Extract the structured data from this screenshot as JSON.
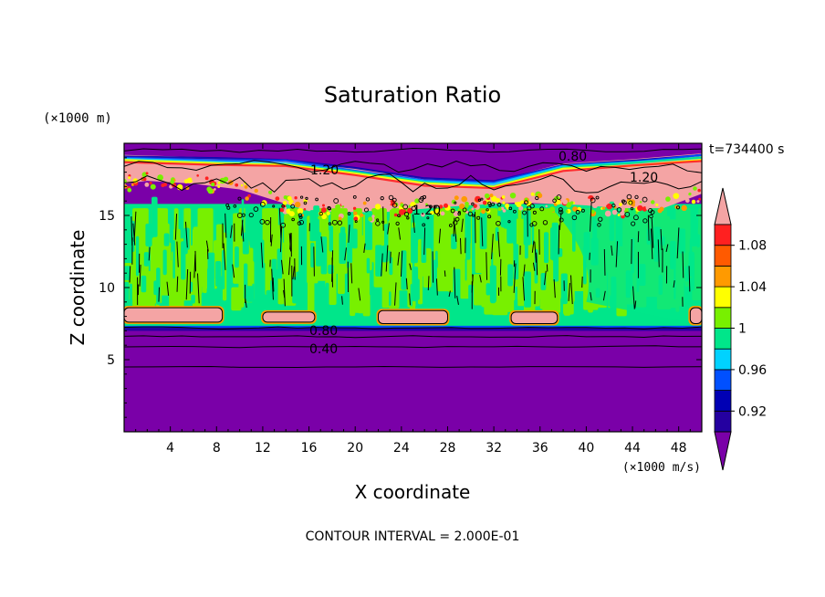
{
  "chart_data": {
    "type": "heatmap",
    "title": "Saturation Ratio",
    "xlabel": "X coordinate",
    "ylabel": "Z coordinate",
    "x_unit": "(×1000 m/s)",
    "y_unit": "(×1000 m)",
    "time_label": "t=734400 s",
    "footer": "CONTOUR INTERVAL = 2.000E-01",
    "xlim": [
      0,
      50
    ],
    "ylim": [
      0,
      20
    ],
    "x_ticks": [
      "4",
      "8",
      "12",
      "16",
      "20",
      "24",
      "28",
      "32",
      "36",
      "40",
      "44",
      "48"
    ],
    "y_ticks": [
      "5",
      "10",
      "15"
    ],
    "colorbar_labels": [
      "1.08",
      "1.04",
      "1",
      "0.96",
      "0.92"
    ],
    "colorbar_colors": [
      "#7a00a8",
      "#2400a0",
      "#0000b4",
      "#0050ff",
      "#00d2ff",
      "#00e68a",
      "#78f000",
      "#ffff00",
      "#ff9a00",
      "#ff5a00",
      "#ff2020",
      "#f4a4a4"
    ],
    "contour_labels": [
      "1.20",
      "1.20",
      "1.20",
      "0.80",
      "0.80",
      "0.40"
    ],
    "layers": [
      {
        "name": "lower dry layer",
        "z_range": [
          0,
          7.2
        ],
        "value": "< 0.90"
      },
      {
        "name": "low supersaturated patches",
        "z_range": [
          7.5,
          8.6
        ],
        "value": "> 1.10"
      },
      {
        "name": "near-saturated layer",
        "z_range": [
          8.6,
          15.5
        ],
        "value": "0.98 - 1.02"
      },
      {
        "name": "upper supersaturated layer",
        "z_range": [
          15.5,
          19.0
        ],
        "value": "> 1.10"
      },
      {
        "name": "top dry layer",
        "z_range": [
          19.0,
          20.0
        ],
        "value": "< 0.90"
      }
    ]
  }
}
